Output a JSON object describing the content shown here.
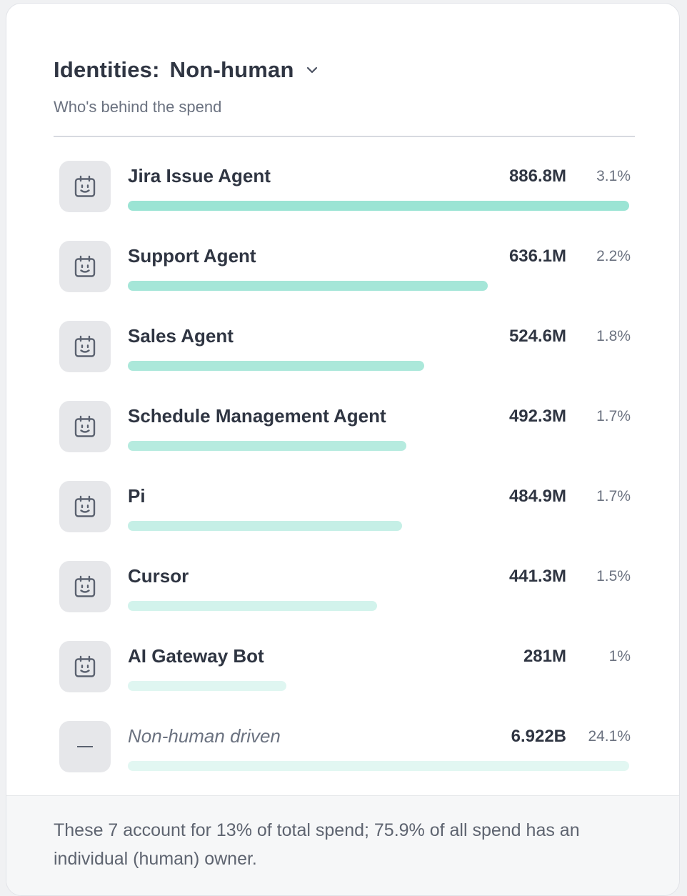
{
  "header": {
    "title_prefix": "Identities:",
    "title_value": "Non-human",
    "subtitle": "Who's behind the spend"
  },
  "bar_color": "#5ed3b9",
  "rows": [
    {
      "name": "Jira Issue Agent",
      "value": "886.8M",
      "percent": "3.1%",
      "bar_fraction": 1.0,
      "bar_opacity": 0.62,
      "icon": "robot-icon"
    },
    {
      "name": "Support Agent",
      "value": "636.1M",
      "percent": "2.2%",
      "bar_fraction": 0.7173,
      "bar_opacity": 0.56,
      "icon": "robot-icon"
    },
    {
      "name": "Sales Agent",
      "value": "524.6M",
      "percent": "1.8%",
      "bar_fraction": 0.5916,
      "bar_opacity": 0.52,
      "icon": "robot-icon"
    },
    {
      "name": "Schedule Management Agent",
      "value": "492.3M",
      "percent": "1.7%",
      "bar_fraction": 0.5551,
      "bar_opacity": 0.45,
      "icon": "robot-icon"
    },
    {
      "name": "Pi",
      "value": "484.9M",
      "percent": "1.7%",
      "bar_fraction": 0.5468,
      "bar_opacity": 0.36,
      "icon": "robot-icon"
    },
    {
      "name": "Cursor",
      "value": "441.3M",
      "percent": "1.5%",
      "bar_fraction": 0.4976,
      "bar_opacity": 0.28,
      "icon": "robot-icon"
    },
    {
      "name": "AI Gateway Bot",
      "value": "281M",
      "percent": "1%",
      "bar_fraction": 0.3169,
      "bar_opacity": 0.2,
      "icon": "robot-icon"
    },
    {
      "name": "Non-human driven",
      "value": "6.922B",
      "percent": "24.1%",
      "bar_fraction": 1.0,
      "bar_opacity": 0.18,
      "icon": "dash-icon",
      "italic": true
    }
  ],
  "footer": {
    "text": "These 7 account for 13% of total spend; 75.9% of all spend has an individual (human) owner."
  }
}
